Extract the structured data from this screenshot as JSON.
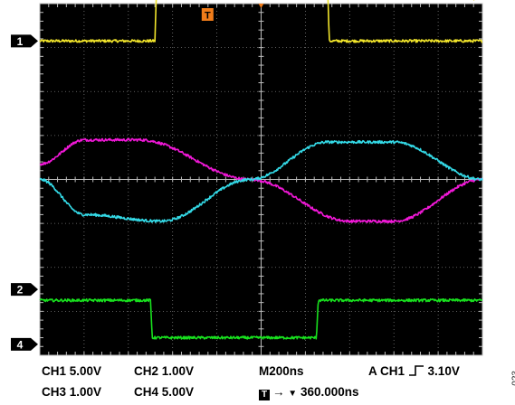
{
  "chart_data": {
    "type": "line",
    "title": "",
    "xlabel": "",
    "ylabel": "",
    "grid": true,
    "divisions": {
      "x": 10,
      "y": 8
    },
    "x_range_ns": [
      0,
      2000
    ],
    "trigger_time_ns": 760,
    "series": [
      {
        "channel": "CH1",
        "color": "#f2e52b",
        "marker": "1",
        "shape": "pulse",
        "low_div": 3.15,
        "high_div": 4.45,
        "rise_ns": 520,
        "fall_ns": 1300,
        "noise_div": 0.03
      },
      {
        "channel": "CH2",
        "color": "#f218d8",
        "marker": "",
        "shape": "sine_arc",
        "center_div": 0.0,
        "amplitude_div": 0.9,
        "transition_ns": [
          0,
          200,
          450,
          950,
          1400,
          1600,
          2000
        ],
        "levels_div": [
          0.35,
          0.9,
          0.9,
          0.0,
          -0.95,
          -0.95,
          0.0
        ],
        "noise_div": 0.03
      },
      {
        "channel": "CH3",
        "color": "#34dbe8",
        "marker": "",
        "shape": "sine_arc",
        "center_div": 0.0,
        "amplitude_div": 0.9,
        "transition_ns": [
          0,
          200,
          550,
          950,
          1300,
          1600,
          2000
        ],
        "levels_div": [
          0.0,
          -0.8,
          -0.95,
          0.0,
          0.85,
          0.85,
          0.0
        ],
        "noise_div": 0.03
      },
      {
        "channel": "CH4",
        "color": "#18e01e",
        "marker": "4",
        "shape": "pulse_inverted",
        "low_div": -3.6,
        "high_div": -2.75,
        "fall_ns": 500,
        "rise_ns": 1250,
        "noise_div": 0.03
      }
    ],
    "channel_markers": [
      {
        "label": "1",
        "level_div": 3.15
      },
      {
        "label": "2",
        "level_div": -2.5
      },
      {
        "label": "4",
        "level_div": -3.75
      }
    ],
    "readouts": {
      "ch1_scale": "CH1  5.00V",
      "ch2_scale": "CH2  1.00V",
      "ch3_scale": "CH3  1.00V",
      "ch4_scale": "CH4  5.00V",
      "timebase": "M200ns",
      "trigger": "A  CH1",
      "trigger_level": "3.10V",
      "trigger_position": "360.000ns",
      "trigger_marker": "T"
    }
  },
  "figure_id": "023"
}
